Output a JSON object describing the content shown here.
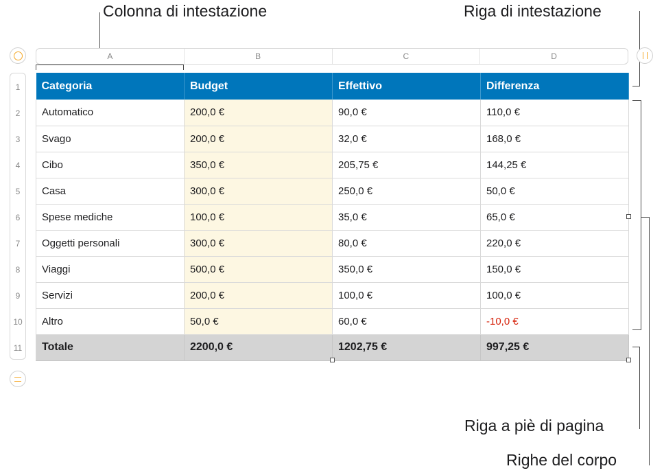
{
  "callouts": {
    "header_column": "Colonna di intestazione",
    "header_row": "Riga di intestazione",
    "footer_row": "Riga a piè di pagina",
    "body_rows": "Righe del corpo"
  },
  "columns": [
    "A",
    "B",
    "C",
    "D"
  ],
  "row_numbers": [
    "1",
    "2",
    "3",
    "4",
    "5",
    "6",
    "7",
    "8",
    "9",
    "10",
    "11"
  ],
  "table": {
    "header": [
      "Categoria",
      "Budget",
      "Effettivo",
      "Differenza"
    ],
    "rows": [
      [
        "Automatico",
        "200,0 €",
        "90,0 €",
        "110,0 €"
      ],
      [
        "Svago",
        "200,0 €",
        "32,0 €",
        "168,0 €"
      ],
      [
        "Cibo",
        "350,0 €",
        "205,75 €",
        "144,25 €"
      ],
      [
        "Casa",
        "300,0 €",
        "250,0 €",
        "50,0 €"
      ],
      [
        "Spese mediche",
        "100,0 €",
        "35,0 €",
        "65,0 €"
      ],
      [
        "Oggetti personali",
        "300,0 €",
        "80,0 €",
        "220,0 €"
      ],
      [
        "Viaggi",
        "500,0 €",
        "350,0 €",
        "150,0 €"
      ],
      [
        "Servizi",
        "200,0 €",
        "100,0 €",
        "100,0 €"
      ],
      [
        "Altro",
        "50,0 €",
        "60,0 €",
        "-10,0 €"
      ]
    ],
    "footer": [
      "Totale",
      "2200,0 €",
      "1202,75 €",
      "997,25 €"
    ]
  },
  "colors": {
    "header_bg": "#0076bb",
    "budget_bg": "#fdf7e2",
    "footer_bg": "#d4d4d4",
    "negative": "#d6220b",
    "control_accent": "#f5a623"
  },
  "icons": {
    "select_table": "circle-icon",
    "column_handle": "pause-icon",
    "row_handle": "equals-icon"
  }
}
